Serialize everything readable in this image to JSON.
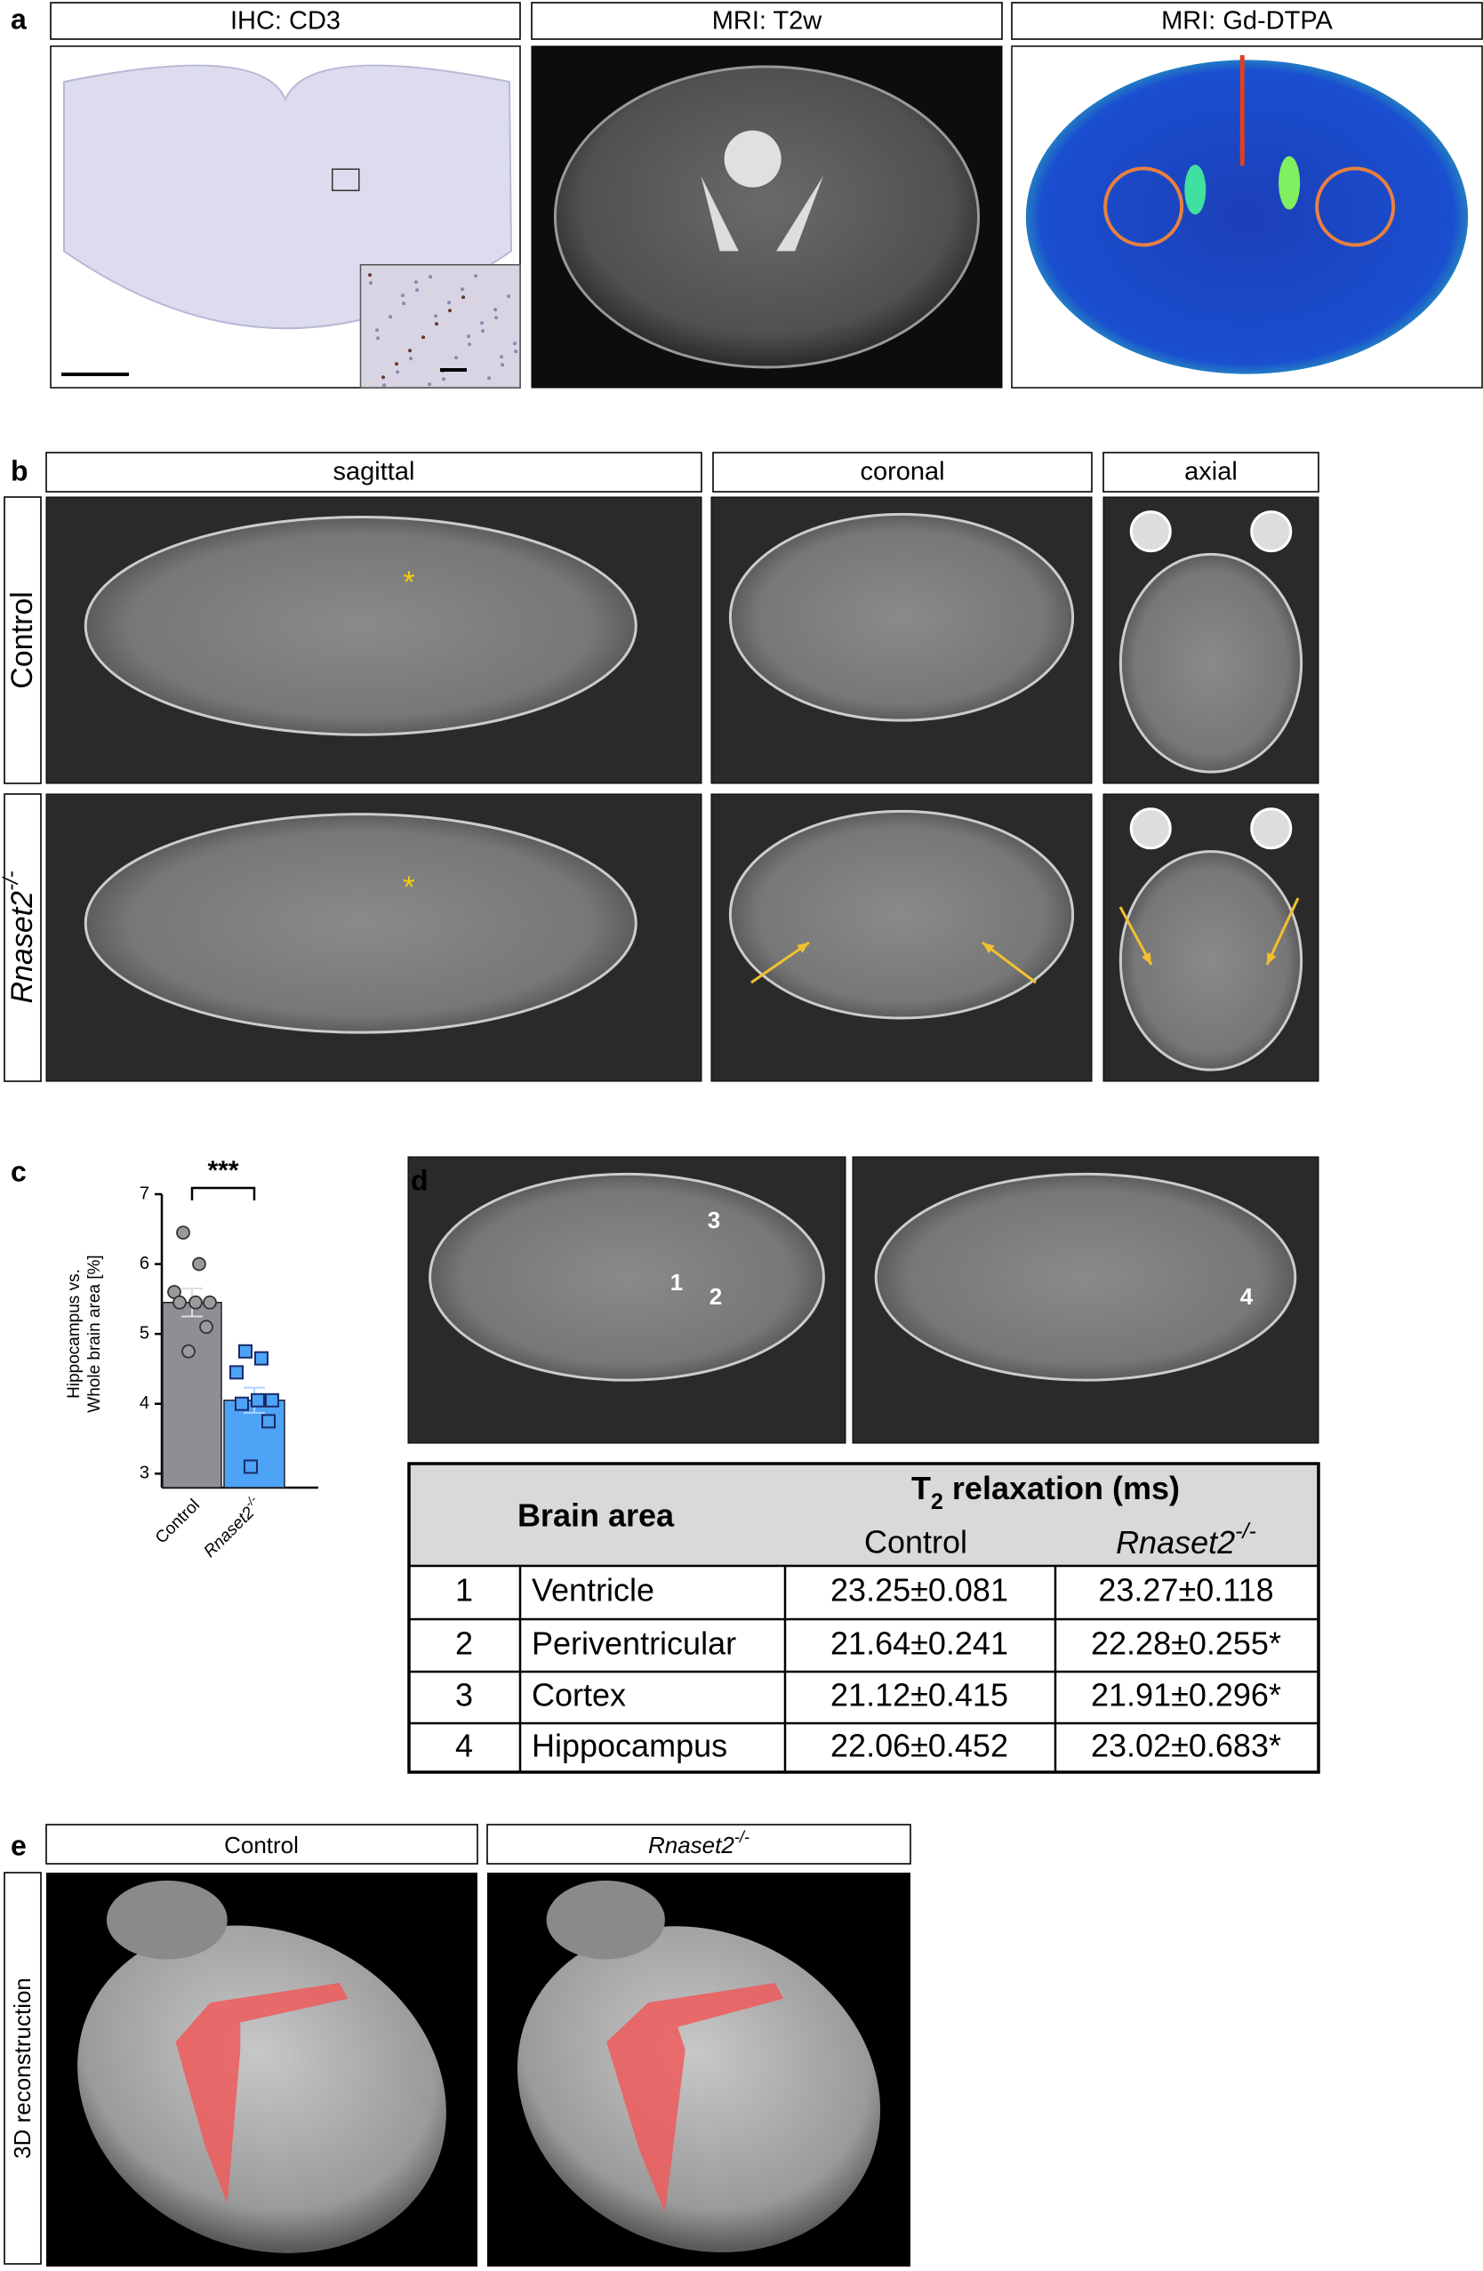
{
  "panel_a": {
    "label": "a",
    "headers": [
      "IHC: CD3",
      "MRI: T2w",
      "MRI: Gd-DTPA"
    ]
  },
  "panel_b": {
    "label": "b",
    "headers": [
      "sagittal",
      "coronal",
      "axial"
    ],
    "control_label": "Control",
    "knockout_label": {
      "base": "Rnaset2",
      "sup": "-/-"
    },
    "asterisks": [
      "*",
      "*"
    ]
  },
  "chart_data": {
    "type": "bar",
    "label": "c",
    "significance": "***",
    "y_label": [
      "Hippocampus vs.",
      "Whole brain area [%]"
    ],
    "categories": [
      "Control",
      "Rnaset2"
    ],
    "category_superscripts": [
      null,
      "-/-"
    ],
    "values": [
      5.45,
      4.05
    ],
    "errors": [
      0.2,
      0.18
    ],
    "colors": [
      "#8e8e94",
      "#4da3f5"
    ],
    "points": [
      [
        6.45,
        6.0,
        5.6,
        5.45,
        5.45,
        5.45,
        5.1,
        4.75
      ],
      [
        4.75,
        4.65,
        4.45,
        4.05,
        4.0,
        4.05,
        3.75,
        3.1
      ]
    ],
    "point_colors": [
      "#9a9a9e",
      "#4da3f5"
    ],
    "point_markers": [
      "circle",
      "square"
    ],
    "ylim": [
      2.8,
      7
    ],
    "yticks": [
      3,
      4,
      5,
      6,
      7
    ]
  },
  "panel_d": {
    "label": "d",
    "region_numbers": [
      "1",
      "2",
      "3",
      "4"
    ],
    "table": {
      "header": {
        "brain_area": "Brain area",
        "t2": {
          "base": "T",
          "sub": "2",
          "rest": " relaxation (ms)"
        },
        "control": "Control",
        "knockout": {
          "base": "Rnaset2",
          "sup": "-/-"
        }
      },
      "rows": [
        [
          "1",
          "Ventricle",
          "23.25±0.081",
          "23.27±0.118"
        ],
        [
          "2",
          "Periventricular",
          "21.64±0.241",
          "22.28±0.255*"
        ],
        [
          "3",
          "Cortex",
          "21.12±0.415",
          "21.91±0.296*"
        ],
        [
          "4",
          "Hippocampus",
          "22.06±0.452",
          "23.02±0.683*"
        ]
      ]
    }
  },
  "panel_e": {
    "label": "e",
    "control_label": "Control",
    "knockout_label": {
      "base": "Rnaset2",
      "sup": "-/-"
    },
    "side_label": "3D reconstruction"
  }
}
